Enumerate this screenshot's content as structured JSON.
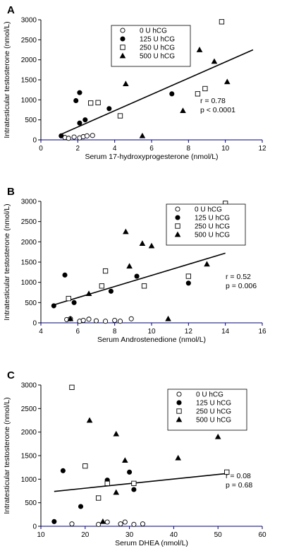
{
  "colors": {
    "axis": "#000000",
    "x_axis": "#000080",
    "marker": "#000000",
    "background": "#ffffff"
  },
  "chart_data": [
    {
      "type": "scatter",
      "panel_label": "A",
      "xlabel": "Serum 17-hydroxyprogesterone (nmol/L)",
      "ylabel": "Intratesticular testosterone (nmol/L)",
      "xlim": [
        0,
        12
      ],
      "ylim": [
        0,
        3000
      ],
      "xticks": [
        0,
        2,
        4,
        6,
        8,
        10,
        12
      ],
      "yticks": [
        0,
        500,
        1000,
        1500,
        2000,
        2500,
        3000
      ],
      "legend_position": "top-left",
      "stats": [
        "r = 0.78",
        "p < 0.0001"
      ],
      "trendline": {
        "x": [
          1,
          11.5
        ],
        "y": [
          120,
          2250
        ]
      },
      "series": [
        {
          "name": "0 U hCG",
          "marker": "open-circle",
          "points": [
            [
              1.3,
              60
            ],
            [
              1.5,
              40
            ],
            [
              1.8,
              70
            ],
            [
              2.1,
              50
            ],
            [
              2.3,
              80
            ],
            [
              2.5,
              100
            ],
            [
              2.8,
              110
            ]
          ]
        },
        {
          "name": "125 U hCG",
          "marker": "filled-circle",
          "points": [
            [
              1.1,
              100
            ],
            [
              1.9,
              980
            ],
            [
              2.1,
              1180
            ],
            [
              2.1,
              420
            ],
            [
              2.4,
              500
            ],
            [
              3.7,
              780
            ],
            [
              7.1,
              1150
            ]
          ]
        },
        {
          "name": "250 U hCG",
          "marker": "open-square",
          "points": [
            [
              2.7,
              920
            ],
            [
              3.1,
              930
            ],
            [
              4.3,
              600
            ],
            [
              8.5,
              1150
            ],
            [
              8.9,
              1280
            ],
            [
              9.8,
              2950
            ]
          ]
        },
        {
          "name": "500 U hCG",
          "marker": "filled-triangle",
          "points": [
            [
              4.6,
              1400
            ],
            [
              5.5,
              100
            ],
            [
              7.7,
              730
            ],
            [
              7.8,
              1900
            ],
            [
              8.6,
              2250
            ],
            [
              9.4,
              1960
            ],
            [
              10.1,
              1450
            ]
          ]
        }
      ]
    },
    {
      "type": "scatter",
      "panel_label": "B",
      "xlabel": "Serum Androstenedione (nmol/L)",
      "ylabel": "Intratesticular testosterone (nmol/L)",
      "xlim": [
        4,
        16
      ],
      "ylim": [
        0,
        3000
      ],
      "xticks": [
        4,
        6,
        8,
        10,
        12,
        14,
        16
      ],
      "yticks": [
        0,
        500,
        1000,
        1500,
        2000,
        2500,
        3000
      ],
      "legend_position": "top-right",
      "stats": [
        "r = 0.52",
        "p = 0.006"
      ],
      "trendline": {
        "x": [
          4.6,
          14
        ],
        "y": [
          430,
          1720
        ]
      },
      "series": [
        {
          "name": "0 U hCG",
          "marker": "open-circle",
          "points": [
            [
              5.4,
              80
            ],
            [
              5.6,
              100
            ],
            [
              6.1,
              40
            ],
            [
              6.3,
              60
            ],
            [
              6.6,
              90
            ],
            [
              7.0,
              50
            ],
            [
              7.5,
              40
            ],
            [
              8.0,
              60
            ],
            [
              8.3,
              40
            ],
            [
              8.9,
              100
            ]
          ]
        },
        {
          "name": "125 U hCG",
          "marker": "filled-circle",
          "points": [
            [
              4.7,
              420
            ],
            [
              5.3,
              1180
            ],
            [
              5.8,
              500
            ],
            [
              7.8,
              780
            ],
            [
              9.2,
              1150
            ],
            [
              12.0,
              980
            ]
          ]
        },
        {
          "name": "250 U hCG",
          "marker": "open-square",
          "points": [
            [
              5.5,
              600
            ],
            [
              7.3,
              910
            ],
            [
              7.5,
              1280
            ],
            [
              9.6,
              910
            ],
            [
              12.0,
              1150
            ],
            [
              14.0,
              2950
            ]
          ]
        },
        {
          "name": "500 U hCG",
          "marker": "filled-triangle",
          "points": [
            [
              5.6,
              100
            ],
            [
              6.6,
              720
            ],
            [
              8.6,
              2250
            ],
            [
              8.8,
              1400
            ],
            [
              9.5,
              1960
            ],
            [
              10.0,
              1900
            ],
            [
              10.9,
              100
            ],
            [
              13.0,
              1450
            ]
          ]
        }
      ]
    },
    {
      "type": "scatter",
      "panel_label": "C",
      "xlabel": "Serum DHEA (nmol/L)",
      "ylabel": "Intratesticular testosterone (nmol/L)",
      "xlim": [
        10,
        60
      ],
      "ylim": [
        0,
        3000
      ],
      "xticks": [
        10,
        20,
        30,
        40,
        50,
        60
      ],
      "yticks": [
        0,
        500,
        1000,
        1500,
        2000,
        2500,
        3000
      ],
      "legend_position": "top-right",
      "stats": [
        "r = 0.08",
        "p = 0.68"
      ],
      "trendline": {
        "x": [
          13,
          52
        ],
        "y": [
          740,
          1120
        ]
      },
      "series": [
        {
          "name": "0 U hCG",
          "marker": "open-circle",
          "points": [
            [
              17,
              50
            ],
            [
              23,
              40
            ],
            [
              25,
              90
            ],
            [
              28,
              50
            ],
            [
              29,
              90
            ],
            [
              31,
              40
            ],
            [
              33,
              50
            ]
          ]
        },
        {
          "name": "125 U hCG",
          "marker": "filled-circle",
          "points": [
            [
              13,
              100
            ],
            [
              15,
              1180
            ],
            [
              19,
              420
            ],
            [
              25,
              980
            ],
            [
              30,
              1150
            ],
            [
              31,
              780
            ]
          ]
        },
        {
          "name": "250 U hCG",
          "marker": "open-square",
          "points": [
            [
              17,
              2950
            ],
            [
              20,
              1280
            ],
            [
              23,
              600
            ],
            [
              25,
              910
            ],
            [
              31,
              910
            ],
            [
              52,
              1150
            ]
          ]
        },
        {
          "name": "500 U hCG",
          "marker": "filled-triangle",
          "points": [
            [
              21,
              2250
            ],
            [
              24,
              100
            ],
            [
              27,
              1960
            ],
            [
              27,
              720
            ],
            [
              29,
              1400
            ],
            [
              41,
              1450
            ],
            [
              50,
              1900
            ]
          ]
        }
      ]
    }
  ]
}
